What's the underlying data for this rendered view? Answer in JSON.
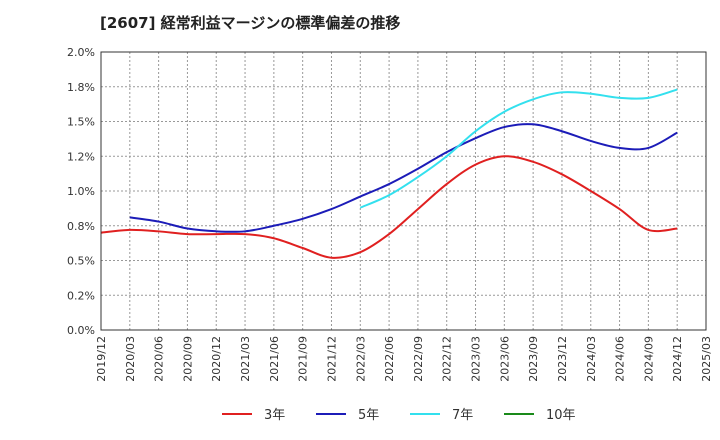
{
  "chart_data": {
    "type": "line",
    "title": "[2607]  経常利益マージンの標準偏差の推移",
    "xlabel": "",
    "ylabel": "",
    "ylim": [
      0.0,
      2.0
    ],
    "yticks": [
      "0.0%",
      "0.2%",
      "0.5%",
      "0.8%",
      "1.0%",
      "1.2%",
      "1.5%",
      "1.8%",
      "2.0%"
    ],
    "xticks": [
      "2019/12",
      "2020/03",
      "2020/06",
      "2020/09",
      "2020/12",
      "2021/03",
      "2021/06",
      "2021/09",
      "2021/12",
      "2022/03",
      "2022/06",
      "2022/09",
      "2022/12",
      "2023/03",
      "2023/06",
      "2023/09",
      "2023/12",
      "2024/03",
      "2024/06",
      "2024/09",
      "2024/12",
      "2025/03"
    ],
    "grid": true,
    "legend_position": "bottom",
    "series": [
      {
        "name": "3年",
        "color": "#e02020",
        "points": [
          [
            "2019/12",
            0.7
          ],
          [
            "2020/03",
            0.72
          ],
          [
            "2020/06",
            0.71
          ],
          [
            "2020/09",
            0.69
          ],
          [
            "2020/12",
            0.69
          ],
          [
            "2021/03",
            0.69
          ],
          [
            "2021/06",
            0.66
          ],
          [
            "2021/09",
            0.59
          ],
          [
            "2021/12",
            0.52
          ],
          [
            "2022/03",
            0.56
          ],
          [
            "2022/06",
            0.69
          ],
          [
            "2022/09",
            0.87
          ],
          [
            "2022/12",
            1.05
          ],
          [
            "2023/03",
            1.19
          ],
          [
            "2023/06",
            1.25
          ],
          [
            "2023/09",
            1.21
          ],
          [
            "2023/12",
            1.12
          ],
          [
            "2024/03",
            1.0
          ],
          [
            "2024/06",
            0.87
          ],
          [
            "2024/09",
            0.72
          ],
          [
            "2024/12",
            0.73
          ]
        ]
      },
      {
        "name": "5年",
        "color": "#1c1cb8",
        "points": [
          [
            "2020/03",
            0.81
          ],
          [
            "2020/06",
            0.78
          ],
          [
            "2020/09",
            0.73
          ],
          [
            "2020/12",
            0.71
          ],
          [
            "2021/03",
            0.71
          ],
          [
            "2021/06",
            0.75
          ],
          [
            "2021/09",
            0.8
          ],
          [
            "2021/12",
            0.87
          ],
          [
            "2022/03",
            0.96
          ],
          [
            "2022/06",
            1.05
          ],
          [
            "2022/09",
            1.16
          ],
          [
            "2022/12",
            1.28
          ],
          [
            "2023/03",
            1.38
          ],
          [
            "2023/06",
            1.46
          ],
          [
            "2023/09",
            1.48
          ],
          [
            "2023/12",
            1.43
          ],
          [
            "2024/03",
            1.36
          ],
          [
            "2024/06",
            1.31
          ],
          [
            "2024/09",
            1.31
          ],
          [
            "2024/12",
            1.42
          ]
        ]
      },
      {
        "name": "7年",
        "color": "#33e0ee",
        "points": [
          [
            "2022/03",
            0.88
          ],
          [
            "2022/06",
            0.97
          ],
          [
            "2022/09",
            1.1
          ],
          [
            "2022/12",
            1.25
          ],
          [
            "2023/03",
            1.43
          ],
          [
            "2023/06",
            1.57
          ],
          [
            "2023/09",
            1.66
          ],
          [
            "2023/12",
            1.71
          ],
          [
            "2024/03",
            1.7
          ],
          [
            "2024/06",
            1.67
          ],
          [
            "2024/09",
            1.67
          ],
          [
            "2024/12",
            1.73
          ]
        ]
      },
      {
        "name": "10年",
        "color": "#1a8a1a",
        "points": []
      }
    ]
  }
}
